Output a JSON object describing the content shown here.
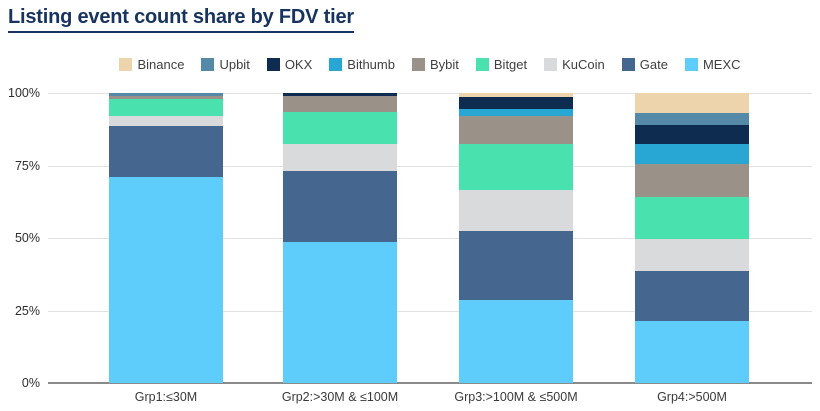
{
  "title": "Listing event count share by FDV tier",
  "chart_data": {
    "type": "bar",
    "stacked": true,
    "unit": "%",
    "title": "Listing event count share by FDV tier",
    "categories": [
      "Grp1:≤30M",
      "Grp2:>30M & ≤100M",
      "Grp3:>100M & ≤500M",
      "Grp4:>500M"
    ],
    "series": [
      {
        "name": "Binance",
        "color": "#edd4ad",
        "values": [
          0,
          0,
          1.5,
          7
        ]
      },
      {
        "name": "Upbit",
        "color": "#5589a8",
        "values": [
          1,
          0,
          0,
          4
        ]
      },
      {
        "name": "OKX",
        "color": "#0e2b50",
        "values": [
          0,
          1,
          4,
          6.5
        ]
      },
      {
        "name": "Bithumb",
        "color": "#28a7d4",
        "values": [
          0,
          0,
          2.5,
          7
        ]
      },
      {
        "name": "Bybit",
        "color": "#9a9189",
        "values": [
          1,
          5.5,
          9.5,
          11.5
        ]
      },
      {
        "name": "Bitget",
        "color": "#49e2ae",
        "values": [
          6,
          11,
          16,
          14.5
        ]
      },
      {
        "name": "KuCoin",
        "color": "#d8dadb",
        "values": [
          3.5,
          9.5,
          14,
          11
        ]
      },
      {
        "name": "Gate",
        "color": "#45678f",
        "values": [
          17.5,
          24.5,
          24,
          17
        ]
      },
      {
        "name": "MEXC",
        "color": "#5ecdfb",
        "values": [
          71,
          48.5,
          28.5,
          21.5
        ]
      }
    ],
    "xlabel": "",
    "ylabel": "",
    "ylim": [
      0,
      100
    ],
    "yticks": [
      {
        "label": "100%",
        "value": 100
      },
      {
        "label": "75%",
        "value": 75
      },
      {
        "label": "50%",
        "value": 50
      },
      {
        "label": "25%",
        "value": 25
      },
      {
        "label": "0%",
        "value": 0
      }
    ],
    "legend_position": "top-center",
    "grid": "horizontal",
    "stack_order_bottom_to_top": [
      "MEXC",
      "Gate",
      "KuCoin",
      "Bitget",
      "Bybit",
      "Bithumb",
      "OKX",
      "Upbit",
      "Binance"
    ]
  },
  "layout_colors": {
    "title_color": "#17335f",
    "gridline_color": "#e2e2e2",
    "baseline_color": "#8a8a8a",
    "legend_text_color": "#404040"
  }
}
